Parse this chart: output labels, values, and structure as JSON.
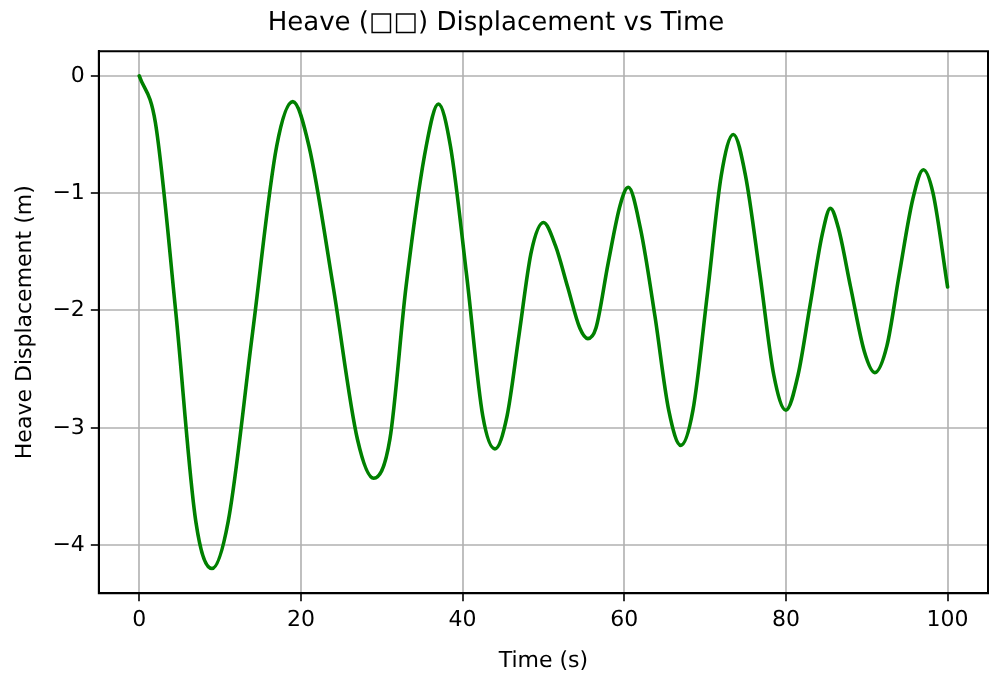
{
  "chart_data": {
    "type": "line",
    "title": "Heave (□□) Displacement vs Time",
    "xlabel": "Time (s)",
    "ylabel": "Heave Displacement (m)",
    "x": [
      0,
      2,
      4.5,
      7,
      9,
      11,
      14,
      17,
      19,
      21,
      24,
      27,
      29,
      31,
      33,
      35.5,
      37,
      38.5,
      40.5,
      42.5,
      44,
      45.5,
      47,
      48.5,
      50,
      51.5,
      53,
      54.5,
      55.5,
      56.5,
      58,
      59.5,
      60.5,
      62,
      63.8,
      65.5,
      67,
      68.5,
      70.3,
      72,
      73.5,
      75,
      76.8,
      78.5,
      80,
      81.5,
      83,
      84.5,
      85.5,
      86.5,
      88,
      89.7,
      91,
      92.5,
      94,
      95.7,
      97,
      98.2,
      100
    ],
    "series": [
      {
        "color": "#008000",
        "values": [
          0,
          -0.4,
          -2.0,
          -3.8,
          -4.2,
          -3.8,
          -2.2,
          -0.6,
          -0.22,
          -0.6,
          -1.8,
          -3.1,
          -3.43,
          -3.1,
          -1.8,
          -0.6,
          -0.24,
          -0.6,
          -1.7,
          -2.9,
          -3.18,
          -2.9,
          -2.2,
          -1.5,
          -1.25,
          -1.45,
          -1.8,
          -2.15,
          -2.24,
          -2.15,
          -1.6,
          -1.1,
          -0.95,
          -1.3,
          -2.05,
          -2.85,
          -3.15,
          -2.85,
          -1.85,
          -0.85,
          -0.5,
          -0.85,
          -1.7,
          -2.55,
          -2.85,
          -2.55,
          -1.95,
          -1.35,
          -1.13,
          -1.3,
          -1.8,
          -2.35,
          -2.53,
          -2.3,
          -1.7,
          -1.05,
          -0.8,
          -1.0,
          -1.8
        ]
      }
    ],
    "xlim": [
      -5,
      105
    ],
    "xticks": [
      0,
      20,
      40,
      60,
      80,
      100
    ],
    "ylim": [
      -4.41,
      0.21
    ],
    "yticks": [
      -4,
      -3,
      -2,
      -1,
      0
    ],
    "grid": true,
    "legend": false,
    "marker": "none",
    "line_style": "solid"
  }
}
